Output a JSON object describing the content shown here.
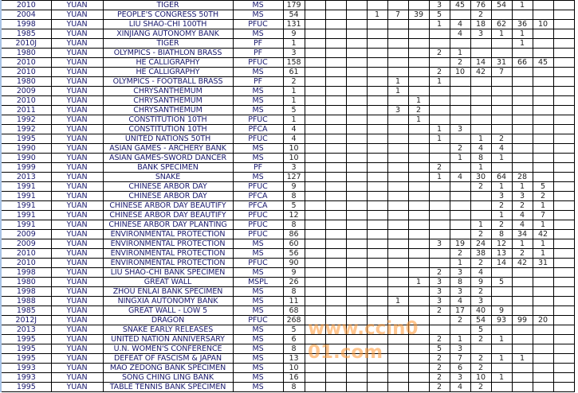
{
  "watermark": "www.ccin001.com",
  "accent_colors": {
    "grid": "#000000",
    "text": "#1a1a6e",
    "watermark": "#ff9632"
  },
  "rows": [
    {
      "year": "2010",
      "currency": "YUAN",
      "name": "TIGER",
      "grade": "MS",
      "qty": "179",
      "dist": [
        "",
        "",
        "",
        "",
        "",
        "",
        "3",
        "45",
        "76",
        "54",
        "1",
        "",
        ""
      ]
    },
    {
      "year": "2004",
      "currency": "YUAN",
      "name": "PEOPLE'S CONGRESS 50TH",
      "grade": "MS",
      "qty": "54",
      "dist": [
        "",
        "",
        "",
        "1",
        "7",
        "39",
        "5",
        "",
        "2",
        "",
        "",
        "",
        ""
      ]
    },
    {
      "year": "1998",
      "currency": "YUAN",
      "name": "LIU SHAO-CHI 100TH",
      "grade": "PFUC",
      "qty": "131",
      "dist": [
        "",
        "",
        "",
        "",
        "",
        "",
        "1",
        "4",
        "18",
        "62",
        "36",
        "10",
        ""
      ]
    },
    {
      "year": "1985",
      "currency": "YUAN",
      "name": "XINJIANG AUTONOMY BANK",
      "grade": "MS",
      "qty": "9",
      "dist": [
        "",
        "",
        "",
        "",
        "",
        "",
        "",
        "4",
        "3",
        "1",
        "1",
        "",
        ""
      ]
    },
    {
      "year": "2010J",
      "currency": "YUAN",
      "name": "TIGER",
      "grade": "PF",
      "qty": "1",
      "dist": [
        "",
        "",
        "",
        "",
        "",
        "",
        "",
        "",
        "",
        "",
        "1",
        "",
        ""
      ]
    },
    {
      "year": "1980",
      "currency": "YUAN",
      "name": "OLYMPICS - BIATHLON BRASS",
      "grade": "PF",
      "qty": "3",
      "dist": [
        "",
        "",
        "",
        "",
        "",
        "",
        "2",
        "1",
        "",
        "",
        "",
        "",
        ""
      ]
    },
    {
      "year": "2010",
      "currency": "YUAN",
      "name": "HE CALLIGRAPHY",
      "grade": "PFUC",
      "qty": "158",
      "dist": [
        "",
        "",
        "",
        "",
        "",
        "",
        "",
        "2",
        "14",
        "31",
        "66",
        "45",
        ""
      ]
    },
    {
      "year": "2010",
      "currency": "YUAN",
      "name": "HE CALLIGRAPHY",
      "grade": "MS",
      "qty": "61",
      "dist": [
        "",
        "",
        "",
        "",
        "",
        "",
        "2",
        "10",
        "42",
        "7",
        "",
        "",
        ""
      ]
    },
    {
      "year": "1980",
      "currency": "YUAN",
      "name": "OLYMPICS - FOOTBALL BRASS",
      "grade": "PF",
      "qty": "2",
      "dist": [
        "",
        "",
        "",
        "",
        "1",
        "",
        "1",
        "",
        "",
        "",
        "",
        "",
        ""
      ]
    },
    {
      "year": "2009",
      "currency": "YUAN",
      "name": "CHRYSANTHEMUM",
      "grade": "MS",
      "qty": "1",
      "dist": [
        "",
        "",
        "",
        "",
        "1",
        "",
        "",
        "",
        "",
        "",
        "",
        "",
        ""
      ]
    },
    {
      "year": "2010",
      "currency": "YUAN",
      "name": "CHRYSANTHEMUM",
      "grade": "MS",
      "qty": "1",
      "dist": [
        "",
        "",
        "",
        "",
        "",
        "1",
        "",
        "",
        "",
        "",
        "",
        "",
        ""
      ]
    },
    {
      "year": "2011",
      "currency": "YUAN",
      "name": "CHRYSANTHEMUM",
      "grade": "MS",
      "qty": "5",
      "dist": [
        "",
        "",
        "",
        "",
        "3",
        "2",
        "",
        "",
        "",
        "",
        "",
        "",
        ""
      ]
    },
    {
      "year": "1992",
      "currency": "YUAN",
      "name": "CONSTITUTION 10TH",
      "grade": "PFUC",
      "qty": "1",
      "dist": [
        "",
        "",
        "",
        "",
        "",
        "1",
        "",
        "",
        "",
        "",
        "",
        "",
        ""
      ]
    },
    {
      "year": "1992",
      "currency": "YUAN",
      "name": "CONSTITUTION 10TH",
      "grade": "PFCA",
      "qty": "4",
      "dist": [
        "",
        "",
        "",
        "",
        "",
        "",
        "1",
        "3",
        "",
        "",
        "",
        "",
        ""
      ]
    },
    {
      "year": "1995",
      "currency": "YUAN",
      "name": "UNITED NATIONS 50TH",
      "grade": "PFUC",
      "qty": "4",
      "dist": [
        "",
        "",
        "",
        "",
        "",
        "",
        "1",
        "",
        "1",
        "2",
        "",
        "",
        ""
      ]
    },
    {
      "year": "1990",
      "currency": "YUAN",
      "name": "ASIAN GAMES - ARCHERY BANK",
      "grade": "MS",
      "qty": "10",
      "dist": [
        "",
        "",
        "",
        "",
        "",
        "",
        "",
        "2",
        "4",
        "4",
        "",
        "",
        ""
      ]
    },
    {
      "year": "1990",
      "currency": "YUAN",
      "name": "ASIAN GAMES-SWORD DANCER",
      "grade": "MS",
      "qty": "10",
      "dist": [
        "",
        "",
        "",
        "",
        "",
        "",
        "",
        "1",
        "8",
        "1",
        "",
        "",
        ""
      ]
    },
    {
      "year": "1999",
      "currency": "YUAN",
      "name": "BANK SPECIMEN",
      "grade": "PF",
      "qty": "3",
      "dist": [
        "",
        "",
        "",
        "",
        "",
        "",
        "2",
        "",
        "1",
        "",
        "",
        "",
        ""
      ]
    },
    {
      "year": "2013",
      "currency": "YUAN",
      "name": "SNAKE",
      "grade": "MS",
      "qty": "127",
      "dist": [
        "",
        "",
        "",
        "",
        "",
        "",
        "1",
        "4",
        "30",
        "64",
        "28",
        "",
        ""
      ]
    },
    {
      "year": "1991",
      "currency": "YUAN",
      "name": "CHINESE ARBOR DAY",
      "grade": "PFUC",
      "qty": "9",
      "dist": [
        "",
        "",
        "",
        "",
        "",
        "",
        "",
        "",
        "2",
        "1",
        "1",
        "5",
        ""
      ]
    },
    {
      "year": "1991",
      "currency": "YUAN",
      "name": "CHINESE ARBOR DAY",
      "grade": "PFCA",
      "qty": "8",
      "dist": [
        "",
        "",
        "",
        "",
        "",
        "",
        "",
        "",
        "",
        "3",
        "3",
        "2",
        ""
      ]
    },
    {
      "year": "1991",
      "currency": "YUAN",
      "name": "CHINESE ARBOR DAY BEAUTIFY",
      "grade": "PFCA",
      "qty": "5",
      "dist": [
        "",
        "",
        "",
        "",
        "",
        "",
        "",
        "",
        "",
        "2",
        "2",
        "1",
        ""
      ]
    },
    {
      "year": "1991",
      "currency": "YUAN",
      "name": "CHINESE ARBOR DAY BEAUTIFY",
      "grade": "PFUC",
      "qty": "12",
      "dist": [
        "",
        "",
        "",
        "",
        "",
        "",
        "",
        "",
        "",
        "1",
        "4",
        "7",
        ""
      ]
    },
    {
      "year": "1991",
      "currency": "YUAN",
      "name": "CHINESE ARBOR DAY PLANTING",
      "grade": "PFUC",
      "qty": "8",
      "dist": [
        "",
        "",
        "",
        "",
        "",
        "",
        "",
        "",
        "1",
        "2",
        "4",
        "1",
        ""
      ]
    },
    {
      "year": "2009",
      "currency": "YUAN",
      "name": "ENVIRONMENTAL PROTECTION",
      "grade": "PFUC",
      "qty": "86",
      "dist": [
        "",
        "",
        "",
        "",
        "",
        "",
        "",
        "",
        "2",
        "8",
        "34",
        "42",
        ""
      ]
    },
    {
      "year": "2009",
      "currency": "YUAN",
      "name": "ENVIRONMENTAL PROTECTION",
      "grade": "MS",
      "qty": "60",
      "dist": [
        "",
        "",
        "",
        "",
        "",
        "",
        "3",
        "19",
        "24",
        "12",
        "1",
        "1",
        ""
      ]
    },
    {
      "year": "2010",
      "currency": "YUAN",
      "name": "ENVIRONMENTAL PROTECTION",
      "grade": "MS",
      "qty": "56",
      "dist": [
        "",
        "",
        "",
        "",
        "",
        "",
        "",
        "2",
        "38",
        "13",
        "2",
        "1",
        ""
      ]
    },
    {
      "year": "2010",
      "currency": "YUAN",
      "name": "ENVIRONMENTAL PROTECTION",
      "grade": "PFUC",
      "qty": "90",
      "dist": [
        "",
        "",
        "",
        "",
        "",
        "",
        "",
        "1",
        "2",
        "14",
        "42",
        "31",
        ""
      ]
    },
    {
      "year": "1998",
      "currency": "YUAN",
      "name": "LIU SHAO-CHI BANK SPECIMEN",
      "grade": "MS",
      "qty": "9",
      "dist": [
        "",
        "",
        "",
        "",
        "",
        "",
        "2",
        "3",
        "4",
        "",
        "",
        "",
        ""
      ]
    },
    {
      "year": "1980",
      "currency": "YUAN",
      "name": "GREAT WALL",
      "grade": "MSPL",
      "qty": "26",
      "dist": [
        "",
        "",
        "",
        "",
        "",
        "1",
        "3",
        "8",
        "9",
        "5",
        "",
        "",
        ""
      ]
    },
    {
      "year": "1998",
      "currency": "YUAN",
      "name": "ZHOU ENLAI BANK SPECIMEN",
      "grade": "MS",
      "qty": "8",
      "dist": [
        "",
        "",
        "",
        "",
        "",
        "",
        "3",
        "3",
        "2",
        "",
        "",
        "",
        ""
      ]
    },
    {
      "year": "1988",
      "currency": "YUAN",
      "name": "NINGXIA AUTONOMY BANK",
      "grade": "MS",
      "qty": "11",
      "dist": [
        "",
        "",
        "",
        "",
        "1",
        "",
        "3",
        "4",
        "3",
        "",
        "",
        "",
        ""
      ]
    },
    {
      "year": "1985",
      "currency": "YUAN",
      "name": "GREAT WALL - LOW 5",
      "grade": "MS",
      "qty": "68",
      "dist": [
        "",
        "",
        "",
        "",
        "",
        "",
        "2",
        "17",
        "40",
        "9",
        "",
        "",
        ""
      ]
    },
    {
      "year": "2012J",
      "currency": "YUAN",
      "name": "DRAGON",
      "grade": "PFUC",
      "qty": "268",
      "dist": [
        "",
        "",
        "",
        "",
        "",
        "",
        "",
        "2",
        "54",
        "93",
        "99",
        "20",
        ""
      ]
    },
    {
      "year": "2013",
      "currency": "YUAN",
      "name": "SNAKE EARLY RELEASES",
      "grade": "MS",
      "qty": "5",
      "dist": [
        "",
        "",
        "",
        "",
        "",
        "",
        "",
        "",
        "5",
        "",
        "",
        "",
        ""
      ]
    },
    {
      "year": "1995",
      "currency": "YUAN",
      "name": "UNITED NATION ANNIVERSARY",
      "grade": "MS",
      "qty": "6",
      "dist": [
        "",
        "",
        "",
        "",
        "",
        "",
        "2",
        "1",
        "2",
        "1",
        "",
        "",
        ""
      ]
    },
    {
      "year": "1995",
      "currency": "YUAN",
      "name": "U.N. WOMEN'S CONFERENCE",
      "grade": "MS",
      "qty": "8",
      "dist": [
        "",
        "",
        "",
        "",
        "",
        "",
        "5",
        "3",
        "",
        "",
        "",
        "",
        ""
      ]
    },
    {
      "year": "1995",
      "currency": "YUAN",
      "name": "DEFEAT OF FASCISM & JAPAN",
      "grade": "MS",
      "qty": "13",
      "dist": [
        "",
        "",
        "",
        "",
        "",
        "",
        "2",
        "7",
        "2",
        "1",
        "1",
        "",
        ""
      ]
    },
    {
      "year": "1993",
      "currency": "YUAN",
      "name": "MAO ZEDONG BANK SPECIMEN",
      "grade": "MS",
      "qty": "10",
      "dist": [
        "",
        "",
        "",
        "",
        "",
        "",
        "2",
        "6",
        "2",
        "",
        "",
        "",
        ""
      ]
    },
    {
      "year": "1993",
      "currency": "YUAN",
      "name": "SONG CHING LING BANK",
      "grade": "MS",
      "qty": "16",
      "dist": [
        "",
        "",
        "",
        "",
        "",
        "",
        "2",
        "3",
        "10",
        "1",
        "",
        "",
        ""
      ]
    },
    {
      "year": "1995",
      "currency": "YUAN",
      "name": "TABLE TENNIS BANK SPECIMEN",
      "grade": "MS",
      "qty": "8",
      "dist": [
        "",
        "",
        "",
        "",
        "",
        "",
        "2",
        "4",
        "2",
        "",
        "",
        "",
        ""
      ]
    }
  ]
}
